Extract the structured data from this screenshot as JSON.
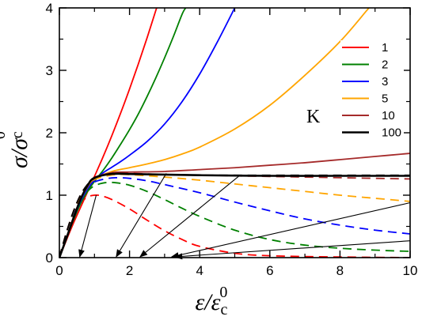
{
  "chart_data": {
    "type": "line",
    "xlabel": "ε/ε_c^0",
    "ylabel": "σ/σ_c^0",
    "xlabel_parts": {
      "main": "ε/ε",
      "sub": "c",
      "sup": "0"
    },
    "ylabel_parts": {
      "main": "σ/σ",
      "sub": "c",
      "sup": "0"
    },
    "xlim": [
      0,
      10
    ],
    "ylim": [
      0,
      4
    ],
    "xticks": [
      0,
      2,
      4,
      6,
      8,
      10
    ],
    "yticks": [
      0,
      1,
      2,
      3,
      4
    ],
    "grid": false,
    "legend_position": "right",
    "legend_title": "K",
    "series": [
      {
        "name": "1",
        "color": "#ff0000",
        "solid": [
          [
            0,
            0
          ],
          [
            0.2,
            0.28
          ],
          [
            0.4,
            0.55
          ],
          [
            0.6,
            0.8
          ],
          [
            0.8,
            1.05
          ],
          [
            1,
            1.3
          ],
          [
            1.25,
            1.62
          ],
          [
            1.5,
            1.96
          ],
          [
            1.75,
            2.32
          ],
          [
            2,
            2.7
          ],
          [
            2.25,
            3.1
          ],
          [
            2.5,
            3.52
          ],
          [
            2.75,
            3.96
          ],
          [
            2.78,
            4.0
          ]
        ],
        "dashed": [
          [
            0,
            0
          ],
          [
            0.2,
            0.4
          ],
          [
            0.4,
            0.68
          ],
          [
            0.6,
            0.87
          ],
          [
            0.8,
            0.97
          ],
          [
            1,
            1.0
          ],
          [
            1.2,
            0.99
          ],
          [
            1.5,
            0.93
          ],
          [
            2,
            0.78
          ],
          [
            2.5,
            0.6
          ],
          [
            3,
            0.43
          ],
          [
            3.5,
            0.29
          ],
          [
            4,
            0.18
          ],
          [
            5,
            0.07
          ],
          [
            6,
            0.03
          ],
          [
            8,
            0.01
          ],
          [
            10,
            0.0
          ]
        ]
      },
      {
        "name": "2",
        "color": "#008000",
        "solid": [
          [
            0,
            0
          ],
          [
            0.2,
            0.3
          ],
          [
            0.4,
            0.6
          ],
          [
            0.6,
            0.86
          ],
          [
            0.8,
            1.06
          ],
          [
            1,
            1.22
          ],
          [
            1.25,
            1.4
          ],
          [
            1.5,
            1.6
          ],
          [
            1.75,
            1.82
          ],
          [
            2,
            2.05
          ],
          [
            2.25,
            2.3
          ],
          [
            2.5,
            2.58
          ],
          [
            2.75,
            2.88
          ],
          [
            3,
            3.2
          ],
          [
            3.25,
            3.54
          ],
          [
            3.5,
            3.9
          ],
          [
            3.6,
            4.0
          ]
        ],
        "dashed": [
          [
            0,
            0
          ],
          [
            0.2,
            0.4
          ],
          [
            0.4,
            0.7
          ],
          [
            0.6,
            0.92
          ],
          [
            0.8,
            1.06
          ],
          [
            1,
            1.15
          ],
          [
            1.3,
            1.2
          ],
          [
            1.6,
            1.2
          ],
          [
            2,
            1.16
          ],
          [
            2.5,
            1.06
          ],
          [
            3,
            0.93
          ],
          [
            3.5,
            0.79
          ],
          [
            4,
            0.66
          ],
          [
            5,
            0.44
          ],
          [
            6,
            0.29
          ],
          [
            7,
            0.2
          ],
          [
            8,
            0.15
          ],
          [
            9,
            0.12
          ],
          [
            10,
            0.1
          ]
        ]
      },
      {
        "name": "3",
        "color": "#0000ff",
        "solid": [
          [
            0,
            0
          ],
          [
            0.2,
            0.31
          ],
          [
            0.4,
            0.62
          ],
          [
            0.6,
            0.9
          ],
          [
            0.8,
            1.1
          ],
          [
            1,
            1.24
          ],
          [
            1.25,
            1.36
          ],
          [
            1.5,
            1.45
          ],
          [
            1.75,
            1.54
          ],
          [
            2,
            1.64
          ],
          [
            2.5,
            1.86
          ],
          [
            3,
            2.14
          ],
          [
            3.5,
            2.5
          ],
          [
            4,
            2.94
          ],
          [
            4.5,
            3.45
          ],
          [
            5,
            4.0
          ]
        ],
        "dashed": [
          [
            0,
            0
          ],
          [
            0.2,
            0.4
          ],
          [
            0.4,
            0.72
          ],
          [
            0.6,
            0.96
          ],
          [
            0.8,
            1.12
          ],
          [
            1,
            1.21
          ],
          [
            1.3,
            1.26
          ],
          [
            1.6,
            1.28
          ],
          [
            2,
            1.27
          ],
          [
            2.5,
            1.23
          ],
          [
            3,
            1.17
          ],
          [
            4,
            1.04
          ],
          [
            5,
            0.89
          ],
          [
            6,
            0.75
          ],
          [
            7,
            0.62
          ],
          [
            8,
            0.52
          ],
          [
            9,
            0.44
          ],
          [
            10,
            0.38
          ]
        ]
      },
      {
        "name": "5",
        "color": "#ffa500",
        "solid": [
          [
            0,
            0
          ],
          [
            0.2,
            0.31
          ],
          [
            0.4,
            0.63
          ],
          [
            0.6,
            0.92
          ],
          [
            0.8,
            1.13
          ],
          [
            1,
            1.26
          ],
          [
            1.5,
            1.38
          ],
          [
            2,
            1.44
          ],
          [
            2.5,
            1.5
          ],
          [
            3,
            1.57
          ],
          [
            3.5,
            1.66
          ],
          [
            4,
            1.77
          ],
          [
            5,
            2.06
          ],
          [
            6,
            2.44
          ],
          [
            7,
            2.92
          ],
          [
            8,
            3.46
          ],
          [
            8.75,
            3.95
          ],
          [
            8.82,
            4.0
          ]
        ],
        "dashed": [
          [
            0,
            0
          ],
          [
            0.2,
            0.4
          ],
          [
            0.4,
            0.73
          ],
          [
            0.6,
            0.98
          ],
          [
            0.8,
            1.15
          ],
          [
            1,
            1.25
          ],
          [
            1.3,
            1.3
          ],
          [
            1.6,
            1.33
          ],
          [
            2,
            1.33
          ],
          [
            3,
            1.29
          ],
          [
            4,
            1.24
          ],
          [
            5,
            1.18
          ],
          [
            6,
            1.12
          ],
          [
            7,
            1.06
          ],
          [
            8,
            1.0
          ],
          [
            9,
            0.95
          ],
          [
            10,
            0.9
          ]
        ]
      },
      {
        "name": "10",
        "color": "#a52a2a",
        "solid": [
          [
            0,
            0
          ],
          [
            0.2,
            0.31
          ],
          [
            0.4,
            0.63
          ],
          [
            0.6,
            0.93
          ],
          [
            0.8,
            1.15
          ],
          [
            1,
            1.28
          ],
          [
            1.5,
            1.36
          ],
          [
            2,
            1.37
          ],
          [
            3,
            1.38
          ],
          [
            4,
            1.41
          ],
          [
            5,
            1.44
          ],
          [
            6,
            1.48
          ],
          [
            7,
            1.52
          ],
          [
            8,
            1.57
          ],
          [
            9,
            1.62
          ],
          [
            10,
            1.67
          ]
        ],
        "dashed": [
          [
            0,
            0
          ],
          [
            0.2,
            0.4
          ],
          [
            0.4,
            0.74
          ],
          [
            0.6,
            1.0
          ],
          [
            0.8,
            1.17
          ],
          [
            1,
            1.27
          ],
          [
            1.3,
            1.33
          ],
          [
            1.6,
            1.35
          ],
          [
            2,
            1.35
          ],
          [
            3,
            1.33
          ],
          [
            4,
            1.32
          ],
          [
            6,
            1.3
          ],
          [
            8,
            1.28
          ],
          [
            10,
            1.26
          ]
        ]
      },
      {
        "name": "100",
        "color": "#000000",
        "solid": [
          [
            0,
            0
          ],
          [
            0.2,
            0.31
          ],
          [
            0.4,
            0.63
          ],
          [
            0.6,
            0.93
          ],
          [
            0.8,
            1.15
          ],
          [
            1,
            1.28
          ],
          [
            1.5,
            1.34
          ],
          [
            2,
            1.34
          ],
          [
            3,
            1.33
          ],
          [
            4,
            1.32
          ],
          [
            6,
            1.31
          ],
          [
            8,
            1.31
          ],
          [
            10,
            1.31
          ]
        ],
        "dashed": [
          [
            0,
            0
          ],
          [
            0.2,
            0.4
          ],
          [
            0.4,
            0.74
          ],
          [
            0.6,
            1.0
          ],
          [
            0.8,
            1.17
          ],
          [
            1,
            1.27
          ],
          [
            1.3,
            1.33
          ],
          [
            1.6,
            1.35
          ],
          [
            2,
            1.34
          ],
          [
            3,
            1.33
          ],
          [
            4,
            1.32
          ],
          [
            6,
            1.32
          ],
          [
            8,
            1.32
          ],
          [
            10,
            1.32
          ]
        ]
      }
    ],
    "arrows": [
      {
        "from": [
          1.05,
          1.0
        ],
        "to": [
          0.58,
          0.0
        ]
      },
      {
        "from": [
          3.05,
          1.35
        ],
        "to": [
          1.62,
          0.0
        ]
      },
      {
        "from": [
          5.15,
          1.32
        ],
        "to": [
          2.3,
          0.0
        ]
      },
      {
        "from": [
          10,
          0.88
        ],
        "to": [
          3.2,
          0.0
        ]
      },
      {
        "from": [
          10,
          0.27
        ],
        "to": [
          3.3,
          0.0
        ]
      }
    ]
  }
}
